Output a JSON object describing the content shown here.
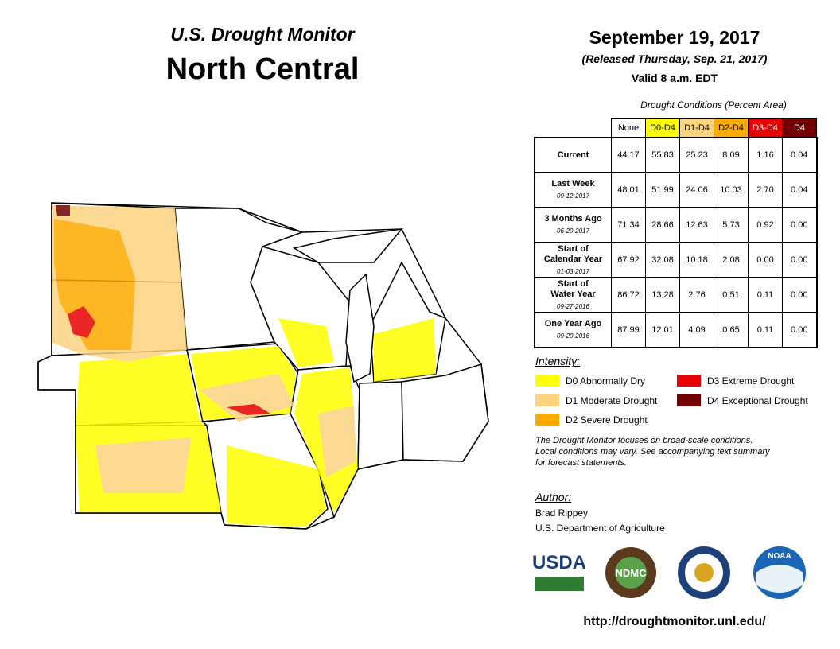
{
  "header": {
    "title": "U.S. Drought Monitor",
    "region": "North Central"
  },
  "date": {
    "title": "September 19, 2017",
    "released": "(Released Thursday, Sep. 21, 2017)",
    "valid": "Valid 8 a.m. EDT"
  },
  "table": {
    "caption": "Drought Conditions (Percent Area)",
    "columns": [
      "None",
      "D0-D4",
      "D1-D4",
      "D2-D4",
      "D3-D4",
      "D4"
    ],
    "column_colors": [
      "#ffffff",
      "#ffff00",
      "#fcd37f",
      "#ffaa00",
      "#e60000",
      "#730000"
    ],
    "rows": [
      {
        "label": [
          "Current"
        ],
        "values": [
          "44.17",
          "55.83",
          "25.23",
          "8.09",
          "1.16",
          "0.04"
        ]
      },
      {
        "label": [
          "Last Week"
        ],
        "date": "09-12-2017",
        "values": [
          "48.01",
          "51.99",
          "24.06",
          "10.03",
          "2.70",
          "0.04"
        ]
      },
      {
        "label": [
          "3 Months Ago"
        ],
        "date": "06-20-2017",
        "values": [
          "71.34",
          "28.66",
          "12.63",
          "5.73",
          "0.92",
          "0.00"
        ]
      },
      {
        "label": [
          "Start of",
          "Calendar Year"
        ],
        "date": "01-03-2017",
        "values": [
          "67.92",
          "32.08",
          "10.18",
          "2.08",
          "0.00",
          "0.00"
        ]
      },
      {
        "label": [
          "Start of",
          "Water Year"
        ],
        "date": "09-27-2016",
        "values": [
          "86.72",
          "13.28",
          "2.76",
          "0.51",
          "0.11",
          "0.00"
        ]
      },
      {
        "label": [
          "One Year Ago"
        ],
        "date": "09-20-2016",
        "values": [
          "87.99",
          "12.01",
          "4.09",
          "0.65",
          "0.11",
          "0.00"
        ]
      }
    ]
  },
  "legend": {
    "title": "Intensity:",
    "items": [
      {
        "label": "D0 Abnormally Dry",
        "color": "#ffff00"
      },
      {
        "label": "D1 Moderate Drought",
        "color": "#fcd37f"
      },
      {
        "label": "D2 Severe Drought",
        "color": "#ffaa00"
      },
      {
        "label": "D3 Extreme Drought",
        "color": "#e60000"
      },
      {
        "label": "D4 Exceptional Drought",
        "color": "#730000"
      }
    ]
  },
  "note": [
    "The Drought Monitor focuses on broad-scale conditions.",
    "Local conditions may vary. See accompanying text summary",
    "for forecast statements."
  ],
  "author": {
    "title": "Author:",
    "name": "Brad Rippey",
    "org": "U.S. Department of Agriculture"
  },
  "logos": [
    "USDA",
    "NDMC",
    "NOAA"
  ],
  "url": "http://droughtmonitor.unl.edu/"
}
